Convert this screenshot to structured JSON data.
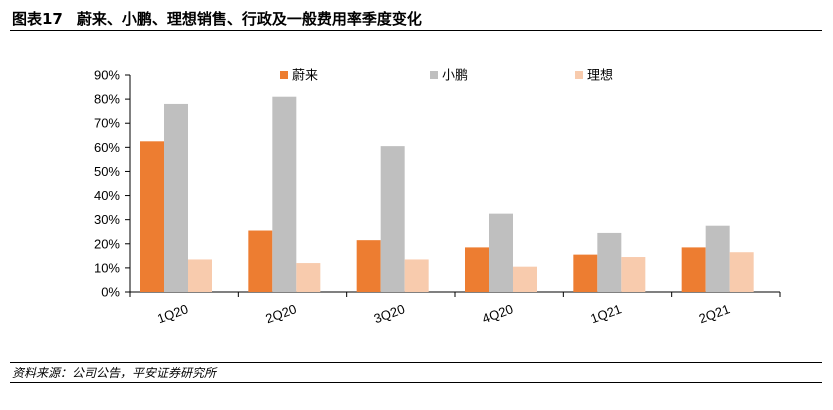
{
  "header": {
    "figure_no": "图表17",
    "title": "蔚来、小鹏、理想销售、行政及一般费用率季度变化"
  },
  "footer": {
    "source": "资料来源：公司公告，平安证券研究所"
  },
  "chart_data": {
    "type": "bar",
    "title": "蔚来、小鹏、理想销售、行政及一般费用率季度变化",
    "categories": [
      "1Q20",
      "2Q20",
      "3Q20",
      "4Q20",
      "1Q21",
      "2Q21"
    ],
    "series": [
      {
        "name": "蔚来",
        "color": "#ED7D31",
        "values": [
          62.5,
          25.5,
          21.5,
          18.5,
          15.5,
          18.5
        ]
      },
      {
        "name": "小鹏",
        "color": "#BFBFBF",
        "values": [
          78,
          81,
          60.5,
          32.5,
          24.5,
          27.5
        ]
      },
      {
        "name": "理想",
        "color": "#F8CBAD",
        "values": [
          13.5,
          12,
          13.5,
          10.5,
          14.5,
          16.5
        ]
      }
    ],
    "ylim": [
      0,
      90
    ],
    "yticks": [
      "0%",
      "10%",
      "20%",
      "30%",
      "40%",
      "50%",
      "60%",
      "70%",
      "80%",
      "90%"
    ],
    "xlabel": "",
    "ylabel": "",
    "grid": false,
    "legend": "top"
  }
}
